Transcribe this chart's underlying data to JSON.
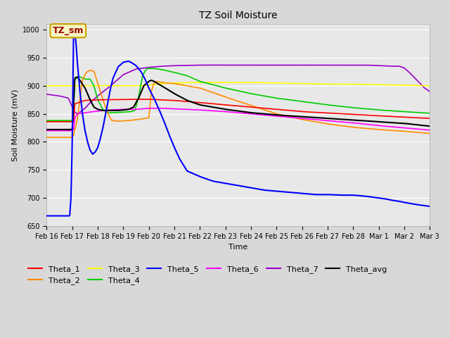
{
  "title": "TZ Soil Moisture",
  "xlabel": "Time",
  "ylabel": "Soil Moisture (mV)",
  "ylim": [
    650,
    1010
  ],
  "xlim": [
    0,
    15
  ],
  "figure_facecolor": "#d8d8d8",
  "plot_facecolor": "#e8e8e8",
  "annotation_text": "TZ_sm",
  "annotation_bg": "#f5f5c0",
  "annotation_border": "#c8a000",
  "annotation_text_color": "#990000",
  "series_colors": {
    "Theta_1": "#ff0000",
    "Theta_2": "#ff8c00",
    "Theta_3": "#ffff00",
    "Theta_4": "#00cc00",
    "Theta_5": "#0000ff",
    "Theta_6": "#ff00ff",
    "Theta_7": "#9900cc",
    "Theta_avg": "#000000"
  },
  "x_tick_labels": [
    "Feb 16",
    "Feb 17",
    "Feb 18",
    "Feb 19",
    "Feb 20",
    "Feb 21",
    "Feb 22",
    "Feb 23",
    "Feb 24",
    "Feb 25",
    "Feb 26",
    "Feb 27",
    "Feb 28",
    "Mar 1",
    "Mar 2",
    "Mar 3"
  ],
  "y_ticks": [
    650,
    700,
    750,
    800,
    850,
    900,
    950,
    1000
  ],
  "grid_color": "#ffffff",
  "title_fontsize": 10,
  "tick_fontsize": 7,
  "label_fontsize": 8,
  "legend_fontsize": 8
}
